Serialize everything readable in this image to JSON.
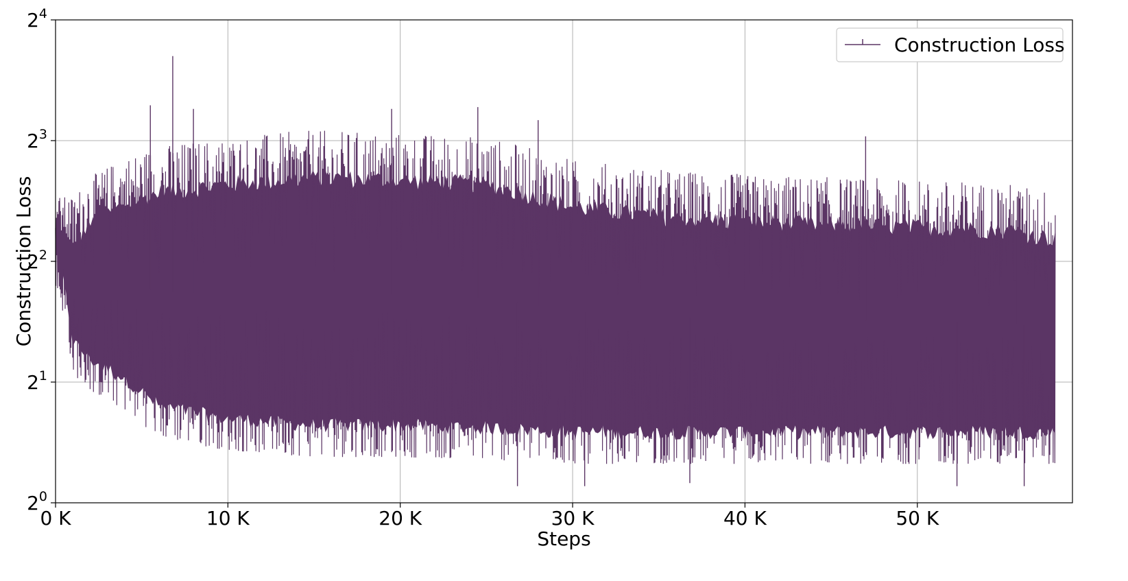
{
  "chart_data": {
    "type": "line",
    "title": "",
    "xlabel": "Steps",
    "ylabel": "Construction Loss",
    "x_scale": "linear",
    "y_scale": "log2",
    "xlim": [
      0,
      59000
    ],
    "ylim": [
      1,
      16
    ],
    "x_ticks": [
      0,
      10000,
      20000,
      30000,
      40000,
      50000
    ],
    "x_tick_labels": [
      "0 K",
      "10 K",
      "20 K",
      "30 K",
      "40 K",
      "50 K"
    ],
    "y_ticks": [
      1,
      2,
      4,
      8,
      16
    ],
    "y_tick_labels": [
      {
        "base": "2",
        "exp": "0"
      },
      {
        "base": "2",
        "exp": "1"
      },
      {
        "base": "2",
        "exp": "2"
      },
      {
        "base": "2",
        "exp": "3"
      },
      {
        "base": "2",
        "exp": "4"
      }
    ],
    "grid": true,
    "legend_position": "top-right",
    "series": [
      {
        "name": "Construction Loss",
        "color": "#5b3565",
        "x_max": 58000,
        "envelope": {
          "x": [
            0,
            500,
            1000,
            2000,
            4000,
            6000,
            8000,
            10000,
            15000,
            20000,
            25000,
            30000,
            35000,
            40000,
            45000,
            50000,
            55000,
            58000
          ],
          "upper": [
            5.8,
            5.8,
            5.8,
            6.5,
            7.3,
            7.8,
            8.0,
            8.2,
            8.5,
            8.4,
            8.2,
            7.2,
            6.8,
            6.6,
            6.5,
            6.4,
            6.3,
            6.0
          ],
          "lower": [
            3.5,
            2.9,
            2.1,
            1.9,
            1.7,
            1.45,
            1.4,
            1.35,
            1.3,
            1.3,
            1.28,
            1.25,
            1.25,
            1.25,
            1.25,
            1.25,
            1.25,
            1.25
          ]
        },
        "spikes": [
          {
            "x": 6800,
            "y": 13.0
          },
          {
            "x": 5500,
            "y": 9.8
          },
          {
            "x": 8000,
            "y": 9.6
          },
          {
            "x": 19500,
            "y": 9.6
          },
          {
            "x": 24500,
            "y": 9.7
          },
          {
            "x": 28000,
            "y": 9.0
          },
          {
            "x": 47000,
            "y": 8.2
          },
          {
            "x": 55800,
            "y": 5.8
          },
          {
            "x": 26800,
            "y": 1.1
          },
          {
            "x": 30700,
            "y": 1.1
          },
          {
            "x": 36800,
            "y": 1.12
          },
          {
            "x": 52300,
            "y": 1.1
          },
          {
            "x": 56200,
            "y": 1.1
          }
        ]
      }
    ]
  }
}
